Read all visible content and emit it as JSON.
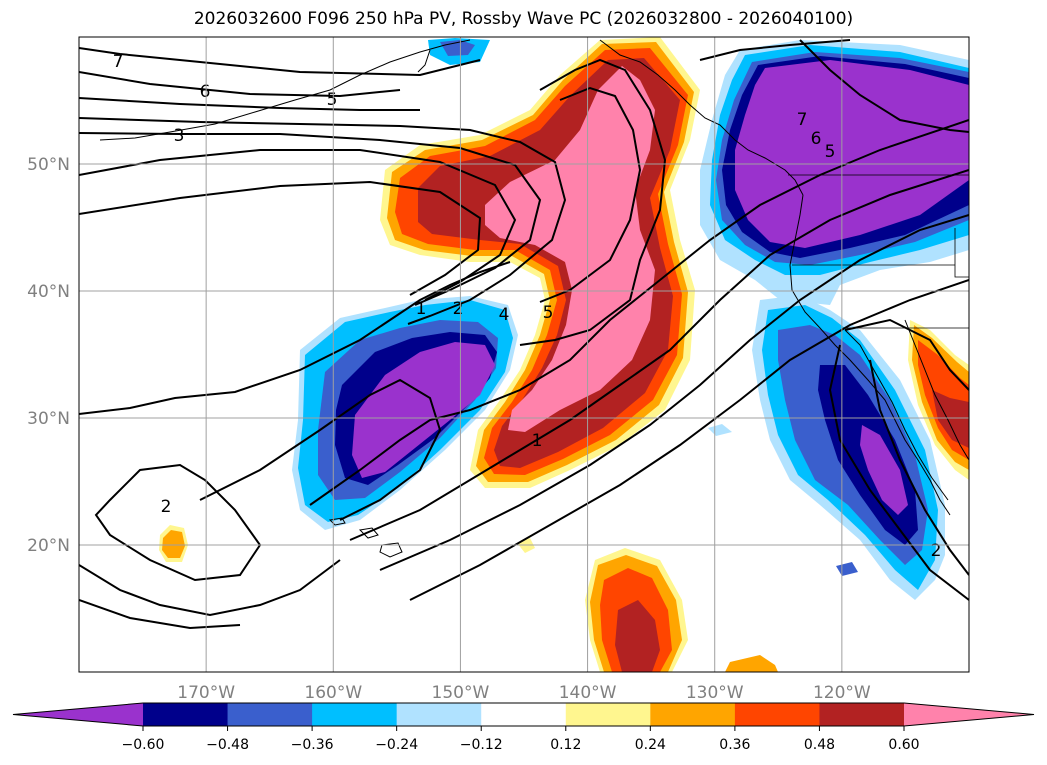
{
  "title": "2026032600 F096 250 hPa PV, Rossby Wave PC (2026032800 - 2026040100)",
  "map": {
    "projection": "plate-carree",
    "lon_range": [
      -180,
      -110
    ],
    "lat_range": [
      10,
      60
    ],
    "lon_ticks": [
      {
        "lon": -170,
        "label": "170°W"
      },
      {
        "lon": -160,
        "label": "160°W"
      },
      {
        "lon": -150,
        "label": "150°W"
      },
      {
        "lon": -140,
        "label": "140°W"
      },
      {
        "lon": -130,
        "label": "130°W"
      },
      {
        "lon": -120,
        "label": "120°W"
      }
    ],
    "lat_ticks": [
      {
        "lat": 50,
        "label": "50°N"
      },
      {
        "lat": 40,
        "label": "40°N"
      },
      {
        "lat": 30,
        "label": "30°N"
      },
      {
        "lat": 20,
        "label": "20°N"
      }
    ],
    "gridlines": true,
    "coastlines": true
  },
  "colorbar": {
    "levels": [
      "−0.60",
      "−0.48",
      "−0.36",
      "−0.24",
      "−0.12",
      "0.12",
      "0.24",
      "0.36",
      "0.48",
      "0.60"
    ],
    "colors": [
      "#9a32cd",
      "#00008b",
      "#3a5fcd",
      "#00bfff",
      "#b0e2ff",
      "#ffffff",
      "#fff68f",
      "#ffa500",
      "#ff4500",
      "#b22222",
      "#ff82ab"
    ],
    "extend": "both"
  },
  "contour_labels": [
    "7",
    "6",
    "5",
    "3",
    "1",
    "2",
    "4",
    "5",
    "1",
    "2",
    "7",
    "6",
    "5",
    "2"
  ],
  "colors": {
    "neg_060": "#9a32cd",
    "neg_048": "#00008b",
    "neg_036": "#3a5fcd",
    "neg_024": "#00bfff",
    "neg_012": "#b0e2ff",
    "pos_012": "#fff68f",
    "pos_024": "#ffa500",
    "pos_036": "#ff4500",
    "pos_048": "#b22222",
    "pos_060": "#ff82ab"
  }
}
